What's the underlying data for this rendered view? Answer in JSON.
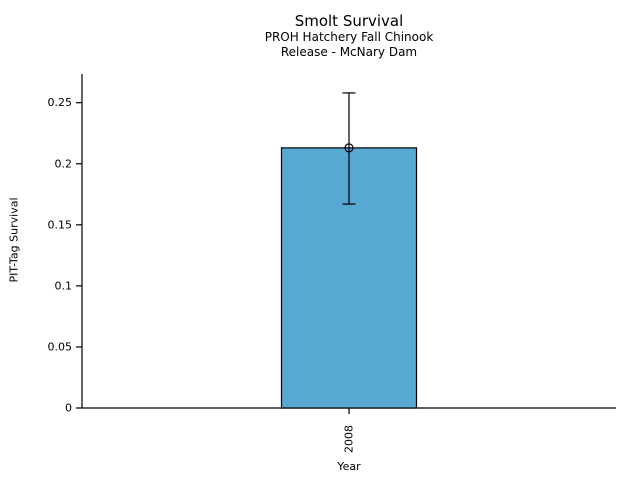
{
  "chart_data": {
    "type": "bar",
    "title": "Smolt Survival",
    "subtitle_lines": [
      "PROH Hatchery Fall Chinook",
      "Release - McNary Dam"
    ],
    "xlabel": "Year",
    "ylabel": "PIT-Tag Survival",
    "categories": [
      "2008"
    ],
    "values": [
      0.213
    ],
    "error_low": [
      0.167
    ],
    "error_high": [
      0.258
    ],
    "ytick_values": [
      0,
      0.05,
      0.1,
      0.15,
      0.2,
      0.25
    ],
    "ytick_labels": [
      "0",
      "0.05",
      "0.1",
      "0.15",
      "0.2",
      "0.25"
    ],
    "ylim": [
      0,
      0.2735
    ],
    "grid": false,
    "legend": "none",
    "bar_color": "#58A8D4",
    "edge_color": "#000000",
    "axis_color": "#000000",
    "text_color": "#000000",
    "marker": "open-circle"
  }
}
